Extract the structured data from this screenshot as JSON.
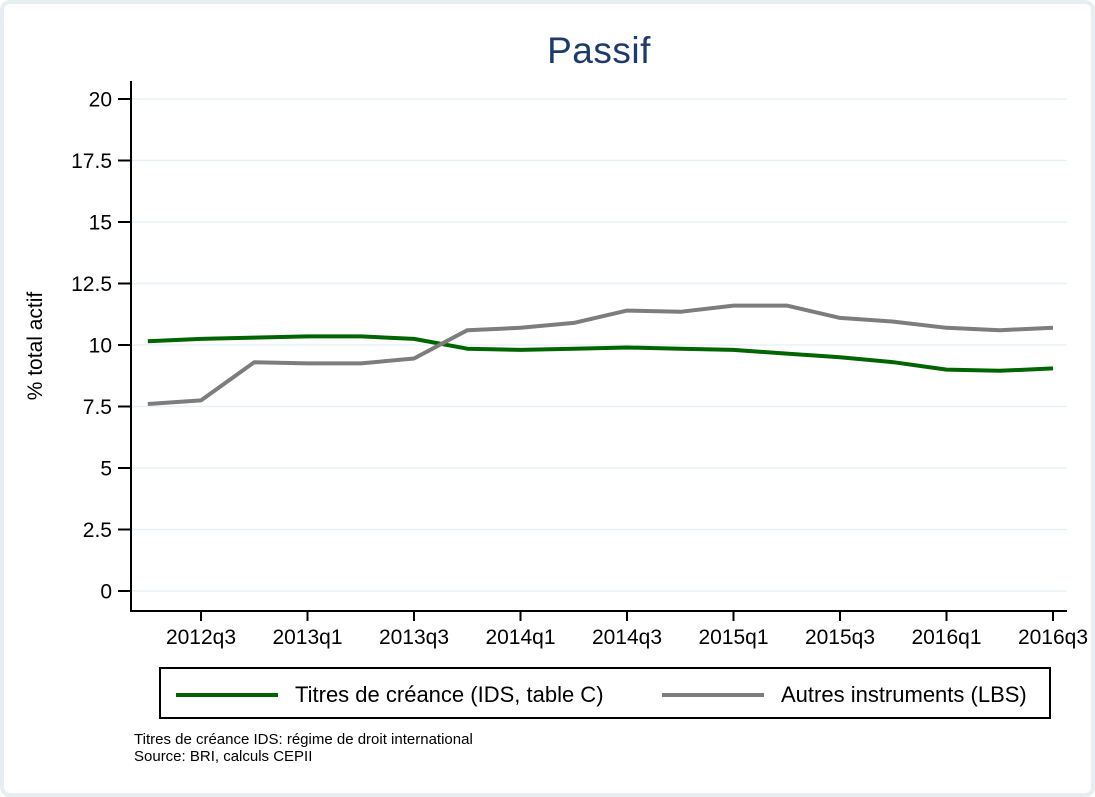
{
  "window": {
    "background_color": "#ffffff",
    "frame_color": "#e7eef2"
  },
  "chart_data": {
    "type": "line",
    "title": "Passif",
    "title_color": "#1c3a6e",
    "ylabel": "% total actif",
    "ylim": [
      0,
      20
    ],
    "yticks": [
      0,
      2.5,
      5,
      7.5,
      10,
      12.5,
      15,
      17.5,
      20
    ],
    "ytick_labels": [
      "0",
      "2.5",
      "5",
      "7.5",
      "10",
      "12.5",
      "15",
      "17.5",
      "20"
    ],
    "x_categories": [
      "2012q2",
      "2012q3",
      "2012q4",
      "2013q1",
      "2013q2",
      "2013q3",
      "2013q4",
      "2014q1",
      "2014q2",
      "2014q3",
      "2014q4",
      "2015q1",
      "2015q2",
      "2015q3",
      "2015q4",
      "2016q1",
      "2016q2",
      "2016q3"
    ],
    "xtick_labels": [
      "2012q3",
      "2013q1",
      "2013q3",
      "2014q1",
      "2014q3",
      "2015q1",
      "2015q3",
      "2016q1",
      "2016q3"
    ],
    "xtick_category_indices": [
      1,
      3,
      5,
      7,
      9,
      11,
      13,
      15,
      17
    ],
    "grid": true,
    "grid_color": "#e9f0f6",
    "axis_color": "#000000",
    "legend_position": "bottom",
    "series": [
      {
        "name": "Titres de créance (IDS, table C)",
        "color": "#006400",
        "values": [
          10.15,
          10.25,
          10.3,
          10.35,
          10.35,
          10.25,
          9.85,
          9.8,
          9.85,
          9.9,
          9.85,
          9.8,
          9.65,
          9.5,
          9.3,
          9.0,
          8.95,
          9.05
        ]
      },
      {
        "name": "Autres instruments (LBS)",
        "color": "#7d7d7d",
        "values": [
          7.6,
          7.75,
          9.3,
          9.25,
          9.25,
          9.45,
          10.6,
          10.7,
          10.9,
          11.4,
          11.35,
          11.6,
          11.6,
          11.1,
          10.95,
          10.7,
          10.6,
          10.7
        ]
      }
    ]
  },
  "footnotes": {
    "line1": "Titres de créance IDS: régime de droit international",
    "line2": "Source: BRI, calculs CEPII"
  }
}
